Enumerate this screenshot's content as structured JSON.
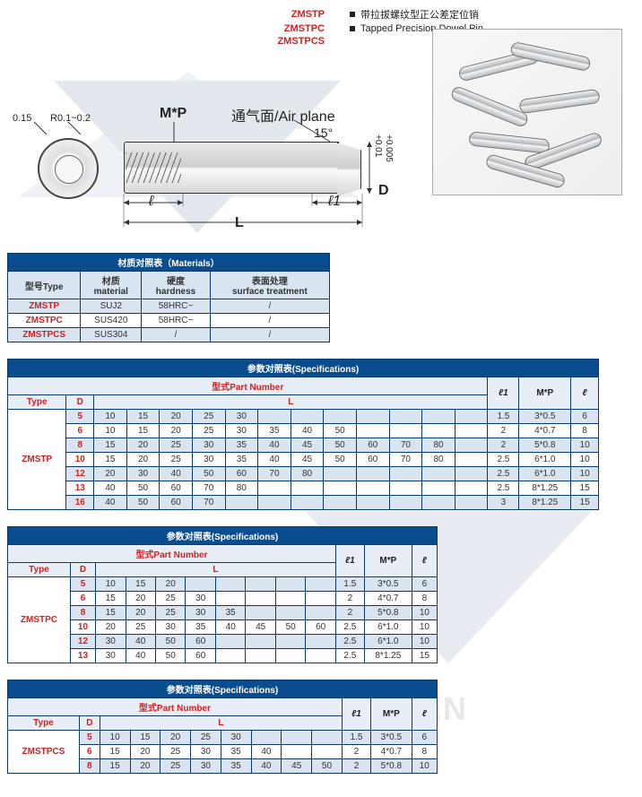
{
  "header": {
    "codes": [
      {
        "code": "ZMSTP",
        "desc": "带拉拔螺纹型正公差定位销"
      },
      {
        "code": "ZMSTPC",
        "desc": "Tapped Precision Dowel Pin"
      },
      {
        "code": "ZMSTPCS",
        "desc": ""
      }
    ]
  },
  "diagram": {
    "chamfer": "0.15",
    "radius": "R0.1~0.2",
    "thread": "M*P",
    "airplane": "通气面/Air plane",
    "angle": "15°",
    "D": "D",
    "tol_upper": "+0.01",
    "tol_lower": "+0.005",
    "l": "ℓ",
    "l1": "ℓ1",
    "L": "L"
  },
  "materials": {
    "title": "材质对照表（Materials）",
    "headers": [
      "型号Type",
      "材质\nmaterial",
      "硬度\nhardness",
      "表面处理\nsurface treatment"
    ],
    "rows": [
      {
        "type": "ZMSTP",
        "mat": "SUJ2",
        "hard": "58HRC~",
        "surf": "/",
        "band": true
      },
      {
        "type": "ZMSTPC",
        "mat": "SUS420",
        "hard": "58HRC~",
        "surf": "/",
        "band": false
      },
      {
        "type": "ZMSTPCS",
        "mat": "SUS304",
        "hard": "/",
        "surf": "/",
        "band": true
      }
    ]
  },
  "spec_title": "参数对照表(Specifications)",
  "part_label": "型式Part Number",
  "col_l1": "ℓ1",
  "col_mp": "M*P",
  "col_l": "ℓ",
  "spec1": {
    "type": "ZMSTP",
    "L_cols": 12,
    "rows": [
      {
        "D": "5",
        "L": [
          "10",
          "15",
          "20",
          "25",
          "30",
          "",
          "",
          "",
          "",
          "",
          "",
          ""
        ],
        "l1": "1.5",
        "mp": "3*0.5",
        "l": "6",
        "band": true
      },
      {
        "D": "6",
        "L": [
          "10",
          "15",
          "20",
          "25",
          "30",
          "35",
          "40",
          "50",
          "",
          "",
          "",
          ""
        ],
        "l1": "2",
        "mp": "4*0.7",
        "l": "8",
        "band": false
      },
      {
        "D": "8",
        "L": [
          "15",
          "20",
          "25",
          "30",
          "35",
          "40",
          "45",
          "50",
          "60",
          "70",
          "80",
          ""
        ],
        "l1": "2",
        "mp": "5*0.8",
        "l": "10",
        "band": true
      },
      {
        "D": "10",
        "L": [
          "15",
          "20",
          "25",
          "30",
          "35",
          "40",
          "45",
          "50",
          "60",
          "70",
          "80",
          ""
        ],
        "l1": "2.5",
        "mp": "6*1.0",
        "l": "10",
        "band": false
      },
      {
        "D": "12",
        "L": [
          "20",
          "30",
          "40",
          "50",
          "60",
          "70",
          "80",
          "",
          "",
          "",
          "",
          ""
        ],
        "l1": "2.5",
        "mp": "6*1.0",
        "l": "10",
        "band": true
      },
      {
        "D": "13",
        "L": [
          "40",
          "50",
          "60",
          "70",
          "80",
          "",
          "",
          "",
          "",
          "",
          "",
          ""
        ],
        "l1": "2.5",
        "mp": "8*1.25",
        "l": "15",
        "band": false
      },
      {
        "D": "16",
        "L": [
          "40",
          "50",
          "60",
          "70",
          "",
          "",
          "",
          "",
          "",
          "",
          "",
          ""
        ],
        "l1": "3",
        "mp": "8*1.25",
        "l": "15",
        "band": true
      }
    ]
  },
  "spec2": {
    "type": "ZMSTPC",
    "L_cols": 8,
    "rows": [
      {
        "D": "5",
        "L": [
          "10",
          "15",
          "20",
          "",
          "",
          "",
          "",
          ""
        ],
        "l1": "1.5",
        "mp": "3*0.5",
        "l": "6",
        "band": true
      },
      {
        "D": "6",
        "L": [
          "15",
          "20",
          "25",
          "30",
          "",
          "",
          "",
          ""
        ],
        "l1": "2",
        "mp": "4*0.7",
        "l": "8",
        "band": false
      },
      {
        "D": "8",
        "L": [
          "15",
          "20",
          "25",
          "30",
          "35",
          "",
          "",
          ""
        ],
        "l1": "2",
        "mp": "5*0.8",
        "l": "10",
        "band": true
      },
      {
        "D": "10",
        "L": [
          "20",
          "25",
          "30",
          "35",
          "40",
          "45",
          "50",
          "60"
        ],
        "l1": "2.5",
        "mp": "6*1.0",
        "l": "10",
        "band": false
      },
      {
        "D": "12",
        "L": [
          "30",
          "40",
          "50",
          "60",
          "",
          "",
          "",
          ""
        ],
        "l1": "2.5",
        "mp": "6*1.0",
        "l": "10",
        "band": true
      },
      {
        "D": "13",
        "L": [
          "30",
          "40",
          "50",
          "60",
          "",
          "",
          "",
          ""
        ],
        "l1": "2.5",
        "mp": "8*1.25",
        "l": "15",
        "band": false
      }
    ]
  },
  "spec3": {
    "type": "ZMSTPCS",
    "L_cols": 8,
    "rows": [
      {
        "D": "5",
        "L": [
          "10",
          "15",
          "20",
          "25",
          "30",
          "",
          "",
          ""
        ],
        "l1": "1.5",
        "mp": "3*0.5",
        "l": "6",
        "band": true
      },
      {
        "D": "6",
        "L": [
          "15",
          "20",
          "25",
          "30",
          "35",
          "40",
          "",
          ""
        ],
        "l1": "2",
        "mp": "4*0.7",
        "l": "8",
        "band": false
      },
      {
        "D": "8",
        "L": [
          "15",
          "20",
          "25",
          "30",
          "35",
          "40",
          "45",
          "50"
        ],
        "l1": "2",
        "mp": "5*0.8",
        "l": "10",
        "band": true
      }
    ]
  },
  "watermark_text": "HENGCHEN"
}
